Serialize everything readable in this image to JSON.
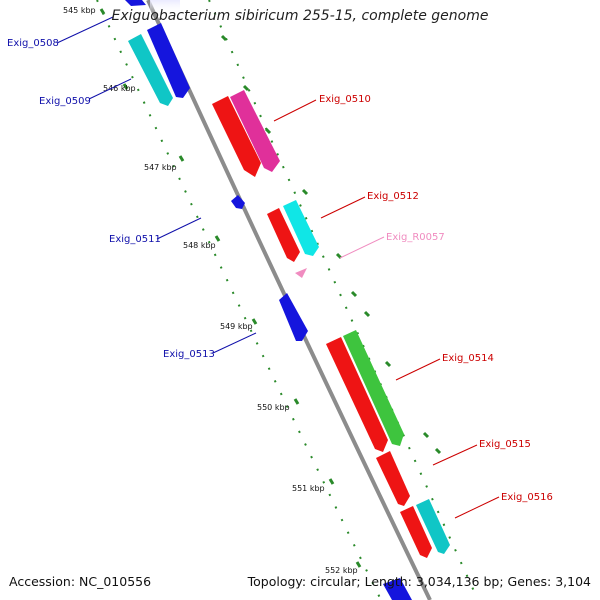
{
  "title": "Exiguobacterium sibiricum 255-15, complete genome",
  "footer": {
    "accession": "Accession: NC_010556",
    "summary": "Topology: circular; Length: 3,034,136 bp; Genes: 3,104"
  },
  "colors": {
    "backbone": "#8c8c8c",
    "tick": "#2a8a2a",
    "forward_label": "#cc0000",
    "reverse_label": "#1010aa",
    "rna_label": "#f08cc0"
  },
  "kbp_labels": [
    "545 kbp",
    "546 kbp",
    "547 kbp",
    "548 kbp",
    "549 kbp",
    "550 kbp",
    "551 kbp",
    "552 kbp"
  ],
  "gene_labels": [
    {
      "id": "g0508",
      "text": "Exig_0508",
      "strand": "reverse"
    },
    {
      "id": "g0509",
      "text": "Exig_0509",
      "strand": "reverse"
    },
    {
      "id": "g0510",
      "text": "Exig_0510",
      "strand": "forward"
    },
    {
      "id": "g0511",
      "text": "Exig_0511",
      "strand": "reverse"
    },
    {
      "id": "g0512",
      "text": "Exig_0512",
      "strand": "forward"
    },
    {
      "id": "gR0057",
      "text": "Exig_R0057",
      "strand": "rna"
    },
    {
      "id": "g0513",
      "text": "Exig_0513",
      "strand": "reverse"
    },
    {
      "id": "g0514",
      "text": "Exig_0514",
      "strand": "forward"
    },
    {
      "id": "g0515",
      "text": "Exig_0515",
      "strand": "forward"
    },
    {
      "id": "g0516",
      "text": "Exig_0516",
      "strand": "forward"
    }
  ]
}
